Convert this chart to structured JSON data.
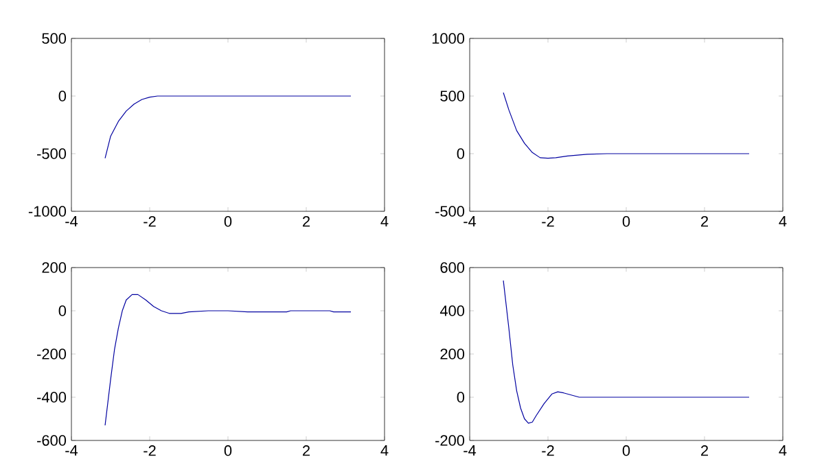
{
  "chart_data": [
    {
      "type": "line",
      "color": "#0000a0",
      "xlim": [
        -4,
        4
      ],
      "xticks": [
        -4,
        -2,
        0,
        2,
        4
      ],
      "ylim": [
        -1000,
        500
      ],
      "yticks": [
        -1000,
        -500,
        0,
        500
      ],
      "x": [
        -3.14,
        -3.0,
        -2.8,
        -2.6,
        -2.4,
        -2.2,
        -2.0,
        -1.8,
        -1.5,
        0,
        3.14
      ],
      "values": [
        -540,
        -350,
        -220,
        -130,
        -70,
        -30,
        -10,
        0,
        0,
        0,
        0
      ]
    },
    {
      "type": "line",
      "color": "#0000a0",
      "xlim": [
        -4,
        4
      ],
      "xticks": [
        -4,
        -2,
        0,
        2,
        4
      ],
      "ylim": [
        -500,
        1000
      ],
      "yticks": [
        -500,
        0,
        500,
        1000
      ],
      "x": [
        -3.14,
        -3.0,
        -2.8,
        -2.6,
        -2.4,
        -2.2,
        -2.0,
        -1.8,
        -1.5,
        -1.0,
        -0.5,
        3.14
      ],
      "values": [
        530,
        380,
        200,
        90,
        10,
        -35,
        -40,
        -35,
        -20,
        -5,
        0,
        0
      ]
    },
    {
      "type": "line",
      "color": "#0000a0",
      "xlim": [
        -4,
        4
      ],
      "xticks": [
        -4,
        -2,
        0,
        2,
        4
      ],
      "ylim": [
        -600,
        200
      ],
      "yticks": [
        -600,
        -400,
        -200,
        0,
        200
      ],
      "x": [
        -3.14,
        -3.0,
        -2.9,
        -2.8,
        -2.7,
        -2.6,
        -2.45,
        -2.3,
        -2.1,
        -1.9,
        -1.7,
        -1.5,
        -1.2,
        -1.0,
        -0.5,
        0,
        0.5,
        1.5,
        1.6,
        2.6,
        2.7,
        3.14
      ],
      "values": [
        -530,
        -320,
        -180,
        -80,
        0,
        50,
        75,
        75,
        50,
        20,
        0,
        -12,
        -12,
        -5,
        0,
        0,
        -5,
        -5,
        0,
        0,
        -5,
        -5
      ]
    },
    {
      "type": "line",
      "color": "#0000a0",
      "xlim": [
        -4,
        4
      ],
      "xticks": [
        -4,
        -2,
        0,
        2,
        4
      ],
      "ylim": [
        -200,
        600
      ],
      "yticks": [
        -200,
        0,
        200,
        400,
        600
      ],
      "x": [
        -3.14,
        -3.0,
        -2.9,
        -2.8,
        -2.7,
        -2.6,
        -2.5,
        -2.4,
        -2.3,
        -2.1,
        -1.9,
        -1.75,
        -1.6,
        -1.4,
        -1.2,
        0,
        3.14
      ],
      "values": [
        540,
        320,
        150,
        30,
        -50,
        -100,
        -120,
        -115,
        -85,
        -30,
        15,
        25,
        20,
        10,
        0,
        0,
        0
      ]
    }
  ]
}
